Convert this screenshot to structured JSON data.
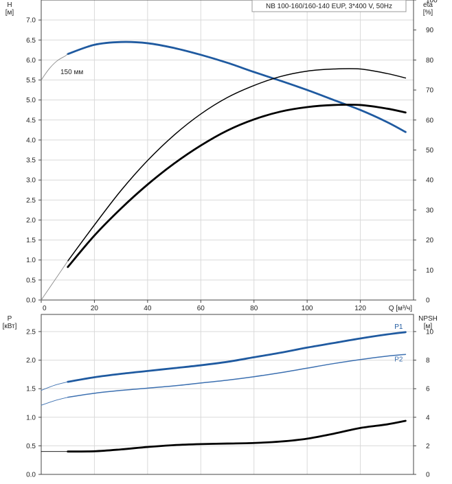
{
  "title": "NB 100-160/160-140 EUP, 3*400 V, 50Hz",
  "colors": {
    "blue": "#1f5aa0",
    "blue_light": "#3b6fb0",
    "black": "#000000",
    "grid": "#d9d9d9",
    "gray": "#8a8a8a"
  },
  "chart_data": [
    {
      "type": "line",
      "panel": "head-efficiency",
      "xlabel": "Q [м³/ч]",
      "xlim": [
        0,
        140
      ],
      "x_ticks": [
        "0",
        "20",
        "40",
        "60",
        "80",
        "100",
        "120"
      ],
      "ylabel_left": "H [м]",
      "ylabel_left_name": "H",
      "ylabel_left_unit": "[м]",
      "ylim_left": [
        0,
        7.5
      ],
      "y_ticks_left": [
        "0.0",
        "0.5",
        "1.0",
        "1.5",
        "2.0",
        "2.5",
        "3.0",
        "3.5",
        "4.0",
        "4.5",
        "5.0",
        "5.5",
        "6.0",
        "6.5",
        "7.0"
      ],
      "ylabel_right": "eta [%]",
      "ylabel_right_name": "eta",
      "ylabel_right_unit": "[%]",
      "ylim_right": [
        0,
        100
      ],
      "y_ticks_right": [
        "0",
        "10",
        "20",
        "30",
        "40",
        "50",
        "60",
        "70",
        "80",
        "90",
        "100"
      ],
      "grid": true,
      "annotations": [
        "150 мм"
      ],
      "series": [
        {
          "label": "H",
          "axis": "left",
          "color": "#1f5aa0",
          "style": "thick",
          "x": [
            10,
            20,
            30,
            40,
            50,
            60,
            70,
            80,
            90,
            100,
            110,
            120,
            130,
            137
          ],
          "y": [
            6.15,
            6.38,
            6.45,
            6.42,
            6.3,
            6.13,
            5.93,
            5.7,
            5.48,
            5.25,
            5.0,
            4.75,
            4.45,
            4.2
          ]
        },
        {
          "label": "H-ext",
          "axis": "left",
          "color": "#8a8a8a",
          "style": "thin",
          "x": [
            0,
            3,
            6,
            9,
            10
          ],
          "y": [
            5.5,
            5.78,
            5.98,
            6.1,
            6.15
          ]
        },
        {
          "label": "eta-1",
          "axis": "right",
          "color": "#000000",
          "style": "medium",
          "x": [
            10,
            20,
            30,
            40,
            50,
            60,
            70,
            80,
            90,
            100,
            110,
            120,
            130,
            137
          ],
          "y": [
            13,
            25,
            36.5,
            46.5,
            55,
            62,
            67.5,
            71.5,
            74.5,
            76.3,
            77,
            77,
            75.5,
            74
          ]
        },
        {
          "label": "eta-2",
          "axis": "right",
          "color": "#000000",
          "style": "thick",
          "x": [
            10,
            20,
            30,
            40,
            50,
            60,
            70,
            80,
            90,
            100,
            110,
            120,
            130,
            137
          ],
          "y": [
            11,
            21.5,
            30.5,
            38.5,
            45.5,
            51.5,
            56.5,
            60.2,
            62.8,
            64.3,
            65,
            65,
            63.8,
            62.5
          ]
        },
        {
          "label": "eta-ext",
          "axis": "right",
          "color": "#8a8a8a",
          "style": "thin",
          "x": [
            0,
            10
          ],
          "y": [
            0,
            13
          ]
        }
      ]
    },
    {
      "type": "line",
      "panel": "power-npsh",
      "xlim": [
        0,
        140
      ],
      "ylabel_left": "P [кВт]",
      "ylabel_left_name": "P",
      "ylabel_left_unit": "[кВт]",
      "ylim_left": [
        0,
        2.8
      ],
      "y_ticks_left": [
        "0.0",
        "0.5",
        "1.0",
        "1.5",
        "2.0",
        "2.5"
      ],
      "ylabel_right": "NPSH [м]",
      "ylabel_right_name": "NPSH",
      "ylabel_right_unit": "[м]",
      "ylim_right": [
        0,
        11.2
      ],
      "y_ticks_right": [
        "0",
        "2",
        "4",
        "6",
        "8",
        "10"
      ],
      "grid": true,
      "series": [
        {
          "label": "P1",
          "name": "P1",
          "axis": "left",
          "color": "#1f5aa0",
          "style": "thick",
          "x": [
            10,
            20,
            30,
            40,
            50,
            60,
            70,
            80,
            90,
            100,
            110,
            120,
            130,
            137
          ],
          "y": [
            1.62,
            1.7,
            1.76,
            1.81,
            1.86,
            1.91,
            1.97,
            2.05,
            2.13,
            2.22,
            2.3,
            2.38,
            2.45,
            2.49
          ]
        },
        {
          "label": "P1-ext",
          "axis": "left",
          "color": "#3b6fb0",
          "style": "thin",
          "x": [
            0,
            5,
            10
          ],
          "y": [
            1.47,
            1.56,
            1.62
          ]
        },
        {
          "label": "P2",
          "name": "P2",
          "axis": "left",
          "color": "#3b6fb0",
          "style": "medium",
          "x": [
            10,
            20,
            30,
            40,
            50,
            60,
            70,
            80,
            90,
            100,
            110,
            120,
            130,
            137
          ],
          "y": [
            1.35,
            1.42,
            1.47,
            1.51,
            1.55,
            1.6,
            1.65,
            1.71,
            1.78,
            1.86,
            1.94,
            2.01,
            2.07,
            2.1
          ]
        },
        {
          "label": "P2-ext",
          "axis": "left",
          "color": "#3b6fb0",
          "style": "thin",
          "x": [
            0,
            5,
            10
          ],
          "y": [
            1.21,
            1.29,
            1.35
          ]
        },
        {
          "label": "NPSH",
          "axis": "right",
          "color": "#000000",
          "style": "thick",
          "x": [
            10,
            20,
            30,
            40,
            50,
            60,
            70,
            80,
            90,
            100,
            110,
            120,
            130,
            137
          ],
          "y": [
            1.6,
            1.62,
            1.75,
            1.92,
            2.05,
            2.12,
            2.16,
            2.2,
            2.3,
            2.5,
            2.85,
            3.25,
            3.5,
            3.75
          ]
        },
        {
          "label": "NPSH-ext",
          "axis": "right",
          "color": "#000000",
          "style": "thin",
          "x": [
            0,
            10
          ],
          "y": [
            1.6,
            1.6
          ]
        }
      ]
    }
  ]
}
